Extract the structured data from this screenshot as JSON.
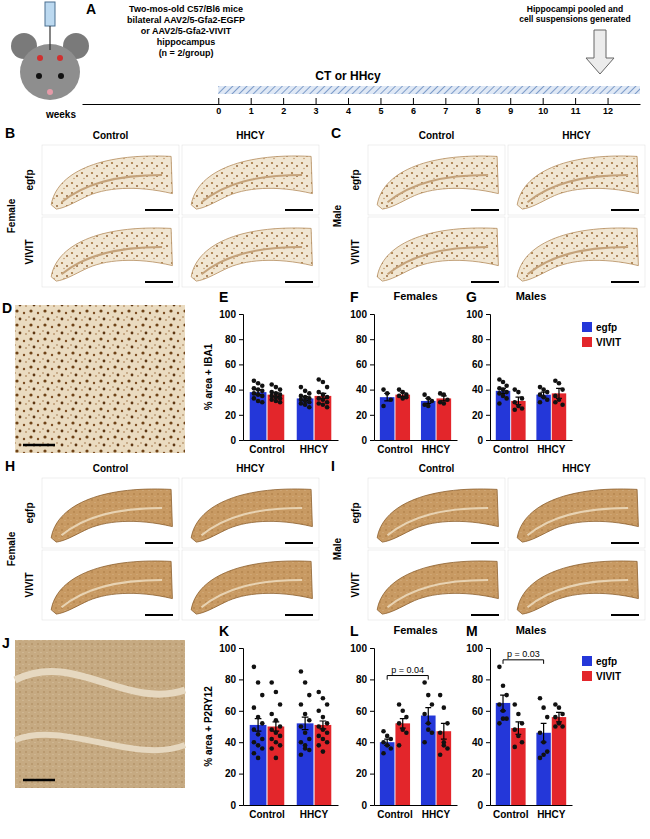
{
  "figure": {
    "panel_a": {
      "letter": "A",
      "injection_text": [
        "Two-mos-old C57/Bl6 mice",
        "bilateral AAV2/5-Gfa2-EGFP",
        "or AAV2/5-Gfa2-VIVIT",
        "hippocampus",
        "(n = 2/group)"
      ],
      "endpoint_text": [
        "Hippocampi pooled and",
        "cell suspensions generated"
      ],
      "treatment_label": "CT or HHcy",
      "timeline": {
        "label": "weeks",
        "xlim": [
          -4.2,
          13
        ],
        "xticks": [
          0,
          1,
          2,
          3,
          4,
          5,
          6,
          7,
          8,
          9,
          10,
          11,
          12
        ]
      }
    },
    "image_panels": [
      {
        "letter": "B",
        "sex": "Female",
        "columns": [
          "Control",
          "HHCY"
        ],
        "rows": [
          "egfp",
          "VIVIT"
        ]
      },
      {
        "letter": "C",
        "sex": "Male",
        "columns": [
          "Control",
          "HHCY"
        ],
        "rows": [
          "egfp",
          "VIVIT"
        ]
      },
      {
        "letter": "H",
        "sex": "Female",
        "columns": [
          "Control",
          "HHCY"
        ],
        "rows": [
          "egfp",
          "VIVIT"
        ]
      },
      {
        "letter": "I",
        "sex": "Male",
        "columns": [
          "Control",
          "HHCY"
        ],
        "rows": [
          "egfp",
          "VIVIT"
        ]
      }
    ],
    "micrographs": [
      {
        "letter": "D"
      },
      {
        "letter": "J"
      }
    ]
  },
  "chart_data": [
    {
      "type": "bar",
      "panel": "E",
      "ylabel": "% area + IBA1",
      "categories": [
        "Control",
        "HHCY"
      ],
      "series": [
        {
          "name": "egfp",
          "color": "#2437d9",
          "values": [
            38,
            33
          ],
          "errors": [
            2,
            1.5
          ],
          "points": [
            [
              47,
              45,
              43,
              41,
              40,
              39,
              37,
              36,
              35,
              33,
              31,
              30
            ],
            [
              42,
              39,
              37,
              35,
              34,
              33,
              32,
              31,
              30,
              29,
              28,
              26
            ]
          ]
        },
        {
          "name": "VIVIT",
          "color": "#e3262b",
          "values": [
            36,
            35
          ],
          "errors": [
            1.5,
            2
          ],
          "points": [
            [
              44,
              42,
              40,
              38,
              37,
              36,
              35,
              34,
              33,
              32,
              31,
              30
            ],
            [
              48,
              46,
              42,
              38,
              36,
              34,
              33,
              32,
              30,
              29,
              28,
              26
            ]
          ]
        }
      ],
      "ylim": [
        0,
        100
      ],
      "yticks": [
        0,
        20,
        40,
        60,
        80,
        100
      ]
    },
    {
      "type": "bar",
      "panel": "F",
      "title": "Females",
      "categories": [
        "Control",
        "HHCY"
      ],
      "series": [
        {
          "name": "egfp",
          "color": "#2437d9",
          "values": [
            34,
            31
          ],
          "errors": [
            3,
            2
          ],
          "points": [
            [
              40,
              37,
              32,
              27
            ],
            [
              36,
              33,
              31,
              28,
              27
            ]
          ]
        },
        {
          "name": "VIVIT",
          "color": "#e3262b",
          "values": [
            36,
            33
          ],
          "errors": [
            1.5,
            2
          ],
          "points": [
            [
              40,
              38,
              36,
              35,
              33,
              34
            ],
            [
              37,
              36,
              32,
              30,
              29
            ]
          ]
        }
      ],
      "ylim": [
        0,
        100
      ],
      "yticks": [
        0,
        20,
        40,
        60,
        80,
        100
      ]
    },
    {
      "type": "bar",
      "panel": "G",
      "title": "Males",
      "categories": [
        "Control",
        "HHCY"
      ],
      "series": [
        {
          "name": "egfp",
          "color": "#2437d9",
          "values": [
            39,
            36
          ],
          "errors": [
            2,
            2
          ],
          "points": [
            [
              48,
              46,
              43,
              41,
              40,
              38,
              37,
              35,
              33,
              29
            ],
            [
              42,
              40,
              38,
              36,
              34,
              32,
              30
            ]
          ]
        },
        {
          "name": "VIVIT",
          "color": "#e3262b",
          "values": [
            31,
            37
          ],
          "errors": [
            3,
            4
          ],
          "points": [
            [
              40,
              38,
              33,
              30,
              27,
              25,
              24
            ],
            [
              47,
              45,
              40,
              35,
              32,
              28,
              30
            ]
          ]
        }
      ],
      "ylim": [
        0,
        100
      ],
      "yticks": [
        0,
        20,
        40,
        60,
        80,
        100
      ],
      "legend": "right"
    },
    {
      "type": "bar",
      "panel": "K",
      "ylabel": "% area + P2RY12",
      "categories": [
        "Control",
        "HHCY"
      ],
      "series": [
        {
          "name": "egfp",
          "color": "#2437d9",
          "values": [
            51,
            52
          ],
          "errors": [
            4,
            4
          ],
          "points": [
            [
              88,
              78,
              70,
              62,
              56,
              52,
              48,
              45,
              42,
              40,
              38,
              36,
              33,
              30
            ],
            [
              85,
              78,
              70,
              64,
              58,
              54,
              50,
              46,
              42,
              40,
              38,
              35,
              32,
              36
            ]
          ]
        },
        {
          "name": "VIVIT",
          "color": "#e3262b",
          "values": [
            50,
            51
          ],
          "errors": [
            3,
            2.5
          ],
          "points": [
            [
              78,
              72,
              64,
              58,
              54,
              50,
              48,
              46,
              44,
              42,
              40,
              38,
              36,
              30
            ],
            [
              72,
              68,
              64,
              60,
              56,
              52,
              50,
              48,
              46,
              44,
              42,
              40,
              38,
              34
            ]
          ]
        }
      ],
      "ylim": [
        0,
        100
      ],
      "yticks": [
        0,
        20,
        40,
        60,
        80,
        100
      ]
    },
    {
      "type": "bar",
      "panel": "L",
      "title": "Females",
      "categories": [
        "Control",
        "HHCY"
      ],
      "series": [
        {
          "name": "egfp",
          "color": "#2437d9",
          "values": [
            40,
            57
          ],
          "errors": [
            2,
            5
          ],
          "points": [
            [
              47,
              44,
              42,
              40,
              38,
              36,
              33
            ],
            [
              78,
              70,
              64,
              58,
              52,
              46,
              40,
              48
            ]
          ]
        },
        {
          "name": "VIVIT",
          "color": "#e3262b",
          "values": [
            52,
            47
          ],
          "errors": [
            3,
            5
          ],
          "points": [
            [
              64,
              60,
              56,
              52,
              48,
              46,
              38
            ],
            [
              70,
              62,
              52,
              46,
              40,
              36,
              32,
              38
            ]
          ]
        }
      ],
      "ylim": [
        0,
        100
      ],
      "yticks": [
        0,
        20,
        40,
        60,
        80,
        100
      ],
      "annotations": [
        {
          "text": "p = 0.04",
          "series": "egfp",
          "categories": [
            "Control",
            "HHCY"
          ]
        }
      ]
    },
    {
      "type": "bar",
      "panel": "M",
      "title": "Males",
      "categories": [
        "Control",
        "HHCY"
      ],
      "series": [
        {
          "name": "egfp",
          "color": "#2437d9",
          "values": [
            65,
            46
          ],
          "errors": [
            5,
            6
          ],
          "points": [
            [
              88,
              76,
              70,
              64,
              60,
              55,
              52,
              55
            ],
            [
              68,
              62,
              56,
              46,
              40,
              34,
              30,
              32
            ]
          ]
        },
        {
          "name": "VIVIT",
          "color": "#e3262b",
          "values": [
            49,
            56
          ],
          "errors": [
            4,
            3
          ],
          "points": [
            [
              64,
              58,
              52,
              48,
              44,
              40,
              37
            ],
            [
              64,
              62,
              58,
              56,
              52,
              50,
              50
            ]
          ]
        }
      ],
      "ylim": [
        0,
        100
      ],
      "yticks": [
        0,
        20,
        40,
        60,
        80,
        100
      ],
      "legend": "right",
      "annotations": [
        {
          "text": "p = 0.03",
          "series": "egfp",
          "categories": [
            "Control",
            "HHCY"
          ]
        }
      ]
    }
  ]
}
